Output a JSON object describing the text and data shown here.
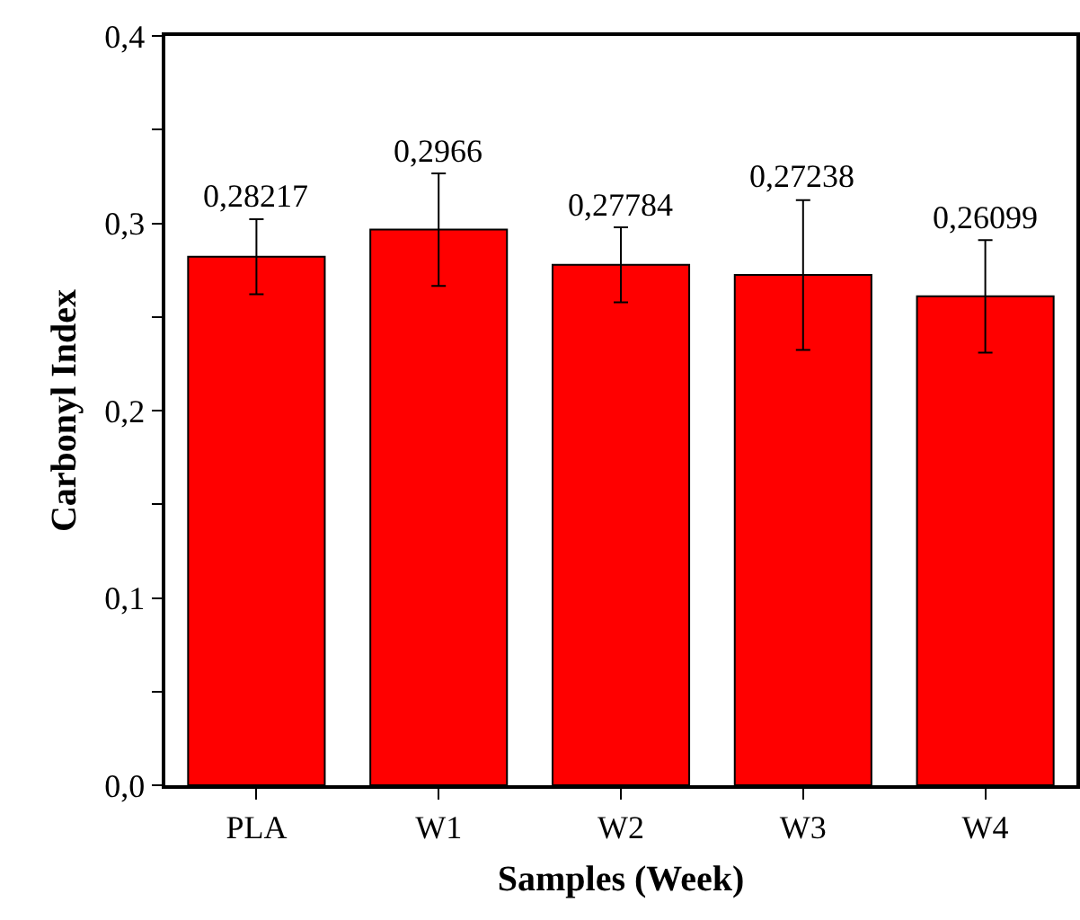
{
  "chart_data": {
    "type": "bar",
    "xlabel": "Samples (Week)",
    "ylabel": "Carbonyl Index",
    "categories": [
      "PLA",
      "W1",
      "W2",
      "W3",
      "W4"
    ],
    "values": [
      0.28217,
      0.2966,
      0.27784,
      0.27238,
      0.26099
    ],
    "value_labels": [
      "0,28217",
      "0,2966",
      "0,27784",
      "0,27238",
      "0,26099"
    ],
    "errors": [
      0.02,
      0.03,
      0.02,
      0.04,
      0.03
    ],
    "color": "#ff0000",
    "ylim": [
      0,
      0.4
    ],
    "yticks": [
      {
        "value": 0,
        "label": "0,0"
      },
      {
        "value": 0.05,
        "label": null
      },
      {
        "value": 0.1,
        "label": "0,1"
      },
      {
        "value": 0.15,
        "label": null
      },
      {
        "value": 0.2,
        "label": "0,2"
      },
      {
        "value": 0.25,
        "label": null
      },
      {
        "value": 0.3,
        "label": "0,3"
      },
      {
        "value": 0.35,
        "label": null
      },
      {
        "value": 0.4,
        "label": "0,4"
      }
    ],
    "grid": false
  }
}
